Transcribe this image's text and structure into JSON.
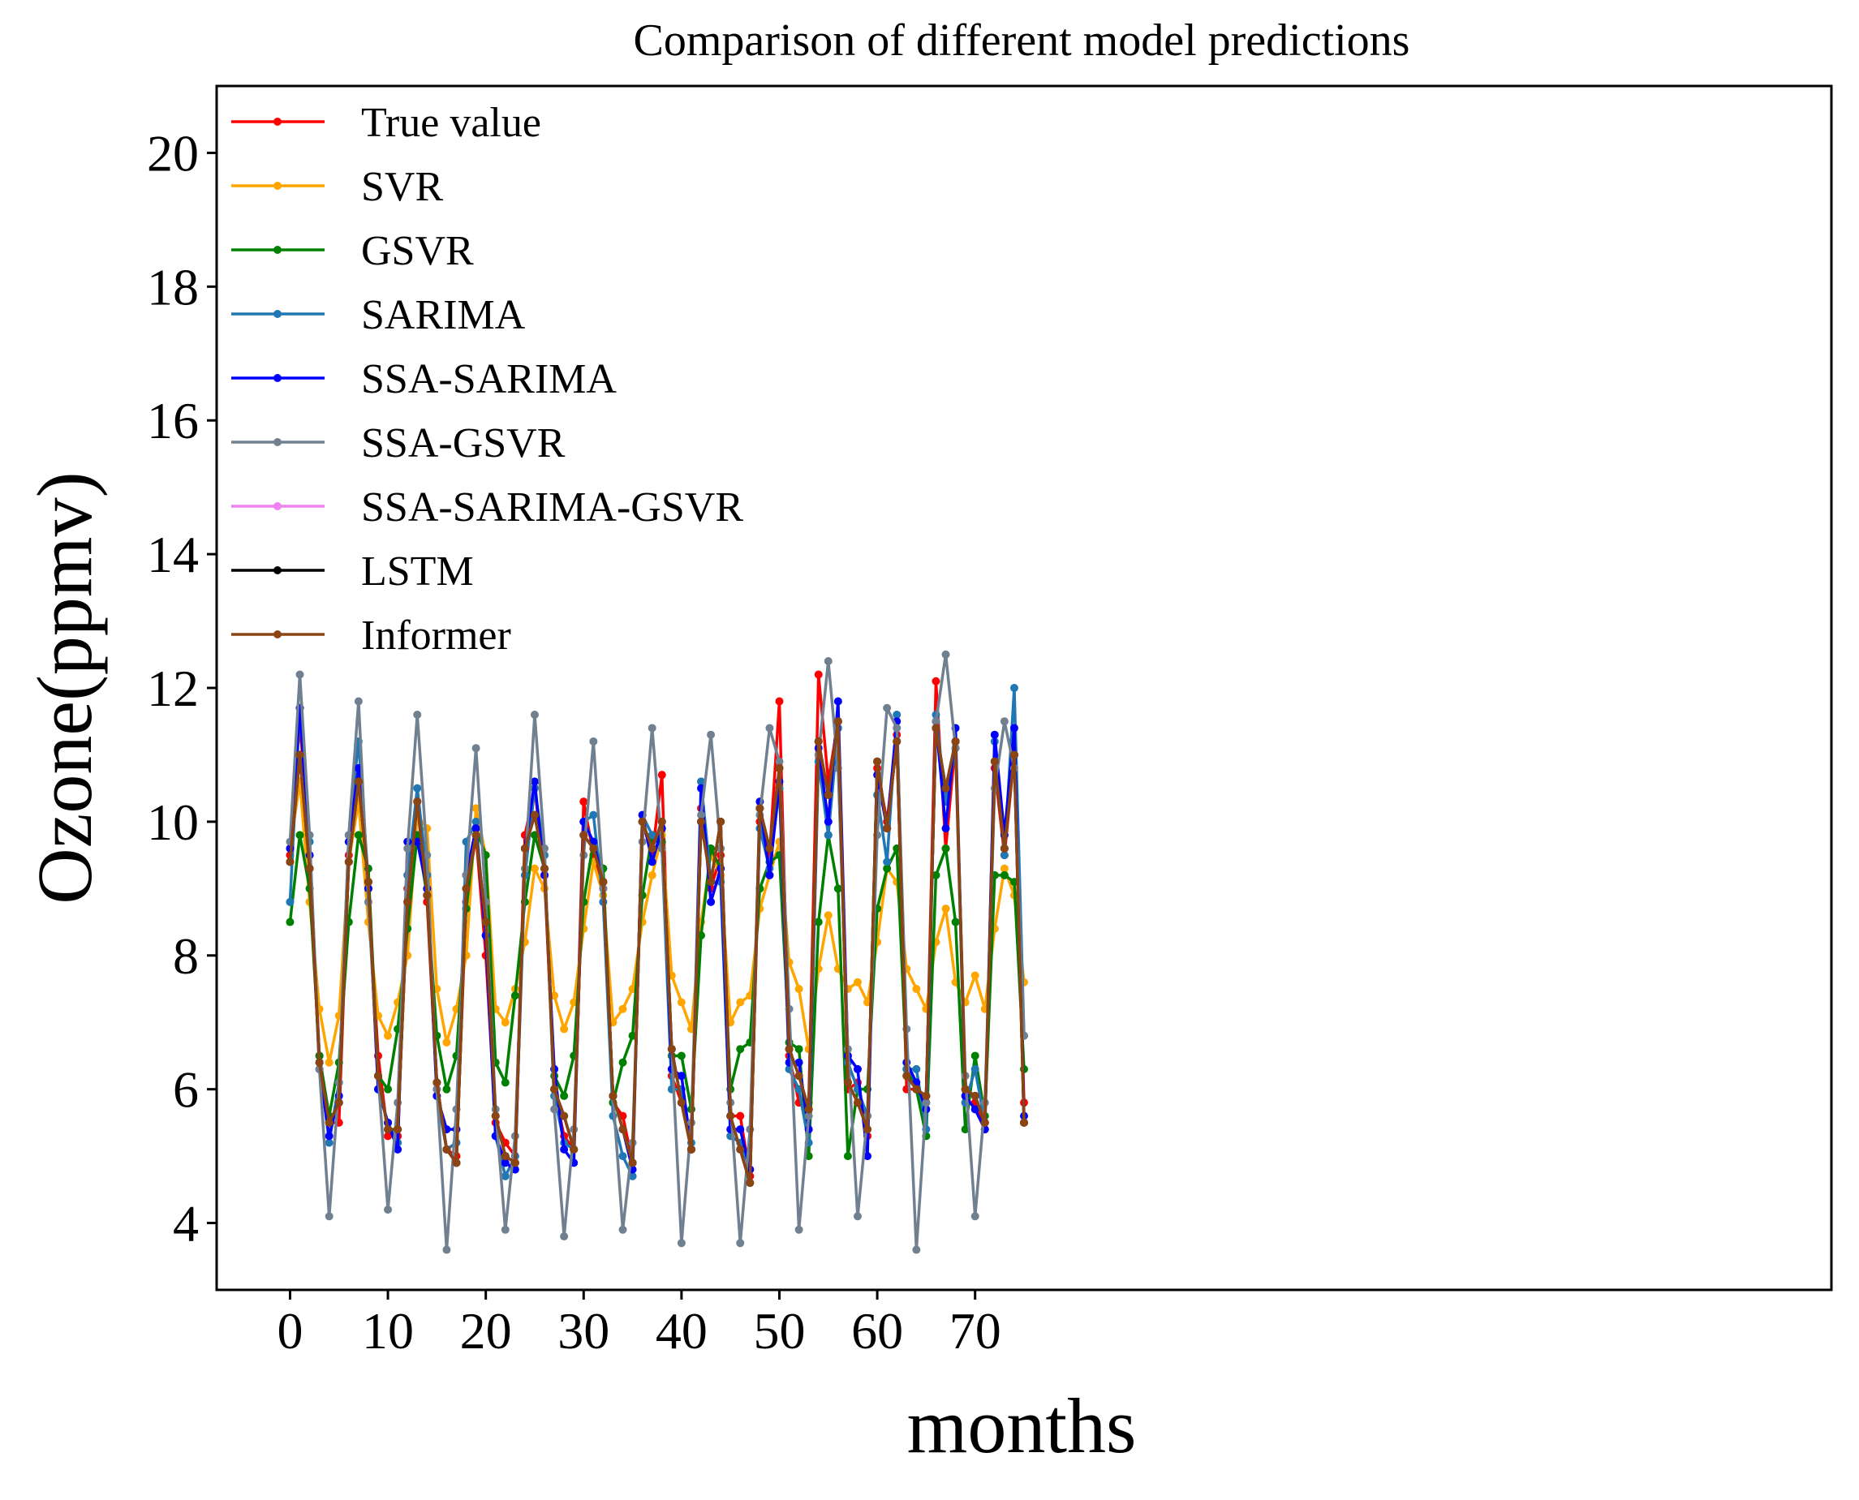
{
  "chart_data": {
    "type": "line",
    "title": "Comparison of different model predictions",
    "xlabel": "months",
    "ylabel": "Ozone(ppmv)",
    "xlim": [
      -7.5,
      157.5
    ],
    "ylim": [
      3,
      21
    ],
    "xticks": [
      0,
      10,
      20,
      30,
      40,
      50,
      60,
      70
    ],
    "yticks": [
      4,
      6,
      8,
      10,
      12,
      14,
      16,
      18,
      20
    ],
    "grid": false,
    "legend_position": "upper-left",
    "x": [
      0,
      1,
      2,
      3,
      4,
      5,
      6,
      7,
      8,
      9,
      10,
      11,
      12,
      13,
      14,
      15,
      16,
      17,
      18,
      19,
      20,
      21,
      22,
      23,
      24,
      25,
      26,
      27,
      28,
      29,
      30,
      31,
      32,
      33,
      34,
      35,
      36,
      37,
      38,
      39,
      40,
      41,
      42,
      43,
      44,
      45,
      46,
      47,
      48,
      49,
      50,
      51,
      52,
      53,
      54,
      55,
      56,
      57,
      58,
      59,
      60,
      61,
      62,
      63,
      64,
      65,
      66,
      67,
      68,
      69,
      70,
      71,
      72,
      73,
      74,
      75
    ],
    "series": [
      {
        "name": "True value",
        "color": "#ff0000",
        "values": [
          9.5,
          11.5,
          9.5,
          6.5,
          5.5,
          5.5,
          9.5,
          10.8,
          9.0,
          6.5,
          5.3,
          5.3,
          9.0,
          10.3,
          8.8,
          6.0,
          5.1,
          5.0,
          8.8,
          9.8,
          8.0,
          5.5,
          5.2,
          5.0,
          9.8,
          10.5,
          9.2,
          6.0,
          5.3,
          5.1,
          10.3,
          9.5,
          9.0,
          5.8,
          5.6,
          4.9,
          10.0,
          9.5,
          10.7,
          6.2,
          5.8,
          5.1,
          10.2,
          9.0,
          9.5,
          5.6,
          5.6,
          4.7,
          10.0,
          9.5,
          11.8,
          6.5,
          5.8,
          5.8,
          12.2,
          10.6,
          11.5,
          6.0,
          6.1,
          5.3,
          10.8,
          10.0,
          11.3,
          6.0,
          6.0,
          5.8,
          12.1,
          9.6,
          11.2,
          5.8,
          5.8,
          5.4,
          10.8,
          9.5,
          11.0,
          5.8
        ]
      },
      {
        "name": "SVR",
        "color": "#ffa500",
        "values": [
          9.6,
          10.6,
          8.8,
          7.2,
          6.4,
          7.1,
          9.4,
          10.3,
          8.5,
          7.1,
          6.8,
          7.3,
          8.0,
          10.1,
          9.9,
          7.5,
          6.7,
          7.2,
          8.0,
          10.2,
          9.5,
          7.2,
          7.0,
          7.5,
          8.2,
          9.3,
          9.0,
          7.4,
          6.9,
          7.3,
          8.4,
          9.4,
          8.9,
          7.0,
          7.2,
          7.5,
          8.5,
          9.2,
          9.8,
          7.7,
          7.3,
          6.9,
          8.5,
          9.5,
          9.2,
          7.0,
          7.3,
          7.4,
          8.7,
          9.2,
          9.7,
          7.9,
          7.5,
          6.6,
          7.8,
          8.6,
          7.8,
          7.5,
          7.6,
          7.3,
          8.2,
          9.3,
          9.1,
          7.8,
          7.5,
          7.2,
          8.2,
          8.7,
          7.6,
          7.3,
          7.7,
          7.2,
          8.4,
          9.3,
          8.9,
          7.6
        ]
      },
      {
        "name": "GSVR",
        "color": "#008000",
        "values": [
          8.5,
          9.8,
          9.0,
          6.5,
          5.6,
          6.4,
          8.5,
          9.8,
          9.3,
          6.2,
          6.0,
          6.9,
          8.4,
          9.8,
          8.9,
          6.8,
          6.0,
          6.5,
          8.7,
          9.9,
          9.5,
          6.4,
          6.1,
          7.4,
          8.8,
          9.8,
          9.3,
          6.2,
          5.9,
          6.5,
          8.8,
          9.7,
          9.3,
          5.8,
          6.4,
          6.8,
          8.9,
          9.8,
          9.7,
          6.5,
          6.5,
          5.7,
          8.3,
          9.6,
          9.3,
          6.0,
          6.6,
          6.7,
          9.0,
          9.4,
          9.5,
          6.7,
          6.6,
          5.0,
          8.5,
          9.8,
          9.0,
          5.0,
          6.0,
          6.0,
          8.7,
          9.3,
          9.6,
          6.3,
          6.0,
          5.3,
          9.2,
          9.6,
          8.5,
          5.4,
          6.5,
          5.6,
          9.2,
          9.2,
          9.1,
          6.3
        ]
      },
      {
        "name": "SARIMA",
        "color": "#1f77b4",
        "values": [
          8.8,
          11.7,
          9.7,
          6.4,
          5.2,
          6.1,
          9.8,
          11.2,
          9.1,
          6.0,
          5.5,
          5.2,
          9.2,
          10.5,
          9.2,
          5.9,
          5.1,
          5.2,
          9.7,
          10.0,
          8.3,
          5.3,
          4.7,
          5.0,
          9.2,
          10.5,
          9.5,
          5.9,
          5.2,
          5.1,
          10.0,
          10.1,
          8.8,
          5.6,
          5.0,
          4.7,
          10.1,
          9.8,
          9.6,
          6.0,
          6.0,
          5.2,
          10.6,
          9.1,
          9.1,
          5.3,
          5.2,
          4.8,
          9.9,
          9.3,
          10.5,
          6.3,
          6.0,
          5.2,
          10.9,
          9.8,
          11.4,
          6.4,
          6.0,
          5.6,
          10.4,
          9.4,
          11.6,
          6.3,
          6.3,
          5.4,
          11.6,
          10.3,
          11.1,
          5.8,
          6.3,
          5.5,
          11.2,
          9.5,
          12.0,
          6.8
        ]
      },
      {
        "name": "SSA-SARIMA",
        "color": "#0000ff",
        "values": [
          9.6,
          11.7,
          9.5,
          6.3,
          5.3,
          5.9,
          9.7,
          10.8,
          9.0,
          6.0,
          5.5,
          5.1,
          9.7,
          9.7,
          9.0,
          5.9,
          5.4,
          5.4,
          9.2,
          9.9,
          8.3,
          5.3,
          4.9,
          4.8,
          9.6,
          10.6,
          9.2,
          6.3,
          5.1,
          4.9,
          10.0,
          9.7,
          9.1,
          5.9,
          5.4,
          4.8,
          10.1,
          9.4,
          9.9,
          6.3,
          6.2,
          5.1,
          10.5,
          8.8,
          9.3,
          5.4,
          5.4,
          4.8,
          10.3,
          9.2,
          10.6,
          6.4,
          6.4,
          5.4,
          11.1,
          10.0,
          11.8,
          6.5,
          6.3,
          5.0,
          10.7,
          9.9,
          11.5,
          6.4,
          6.1,
          5.7,
          11.5,
          9.9,
          11.4,
          5.9,
          5.7,
          5.4,
          11.3,
          9.8,
          11.4,
          5.6
        ]
      },
      {
        "name": "SSA-GSVR",
        "color": "#708090",
        "values": [
          9.7,
          12.2,
          9.8,
          6.3,
          4.1,
          6.1,
          9.8,
          11.8,
          8.8,
          6.2,
          4.2,
          5.8,
          9.6,
          11.6,
          9.5,
          6.0,
          3.6,
          5.7,
          9.2,
          11.1,
          8.8,
          5.7,
          3.9,
          5.3,
          9.3,
          11.6,
          9.6,
          5.7,
          3.8,
          5.4,
          9.5,
          11.2,
          9.0,
          5.9,
          3.9,
          5.2,
          9.7,
          11.4,
          9.6,
          6.6,
          3.7,
          5.5,
          10.1,
          11.3,
          9.6,
          5.8,
          3.7,
          5.4,
          10.1,
          11.4,
          10.9,
          7.2,
          3.9,
          5.6,
          11.0,
          12.4,
          10.8,
          6.6,
          4.1,
          5.6,
          9.8,
          11.7,
          11.4,
          6.9,
          3.6,
          5.8,
          11.5,
          12.5,
          11.1,
          6.2,
          4.1,
          5.8,
          10.5,
          11.5,
          10.8,
          6.8
        ]
      },
      {
        "name": "SSA-SARIMA-GSVR",
        "color": "#ee82ee",
        "values": [
          9.4,
          11.0,
          9.3,
          6.4,
          5.5,
          5.8,
          9.4,
          10.6,
          9.1,
          6.2,
          5.4,
          5.4,
          8.8,
          10.3,
          8.9,
          6.1,
          5.1,
          4.9,
          9.0,
          9.8,
          8.5,
          5.6,
          5.0,
          4.9,
          9.6,
          10.1,
          9.3,
          6.0,
          5.6,
          5.1,
          9.8,
          9.6,
          9.1,
          5.9,
          5.4,
          4.9,
          10.0,
          9.6,
          10.0,
          6.6,
          5.8,
          5.1,
          10.0,
          9.1,
          10.0,
          5.6,
          5.1,
          4.6,
          10.2,
          9.6,
          10.8,
          6.6,
          6.2,
          5.7,
          11.2,
          10.4,
          11.5,
          6.1,
          5.8,
          5.4,
          10.9,
          9.9,
          11.2,
          6.2,
          6.0,
          5.9,
          11.4,
          10.5,
          11.2,
          6.0,
          5.9,
          5.5,
          10.9,
          9.6,
          11.0,
          5.5
        ]
      },
      {
        "name": "LSTM",
        "color": "#000000",
        "values": [
          9.4,
          11.0,
          9.3,
          6.4,
          5.5,
          5.8,
          9.4,
          10.6,
          9.1,
          6.2,
          5.4,
          5.4,
          8.8,
          10.3,
          8.9,
          6.1,
          5.1,
          4.9,
          9.0,
          9.8,
          8.5,
          5.6,
          5.0,
          4.9,
          9.6,
          10.1,
          9.3,
          6.0,
          5.6,
          5.1,
          9.8,
          9.6,
          9.1,
          5.9,
          5.4,
          4.9,
          10.0,
          9.6,
          10.0,
          6.6,
          5.8,
          5.1,
          10.0,
          9.1,
          10.0,
          5.6,
          5.1,
          4.6,
          10.2,
          9.6,
          10.8,
          6.6,
          6.2,
          5.7,
          11.2,
          10.4,
          11.5,
          6.1,
          5.8,
          5.4,
          10.9,
          9.9,
          11.2,
          6.2,
          6.0,
          5.9,
          11.4,
          10.5,
          11.2,
          6.0,
          5.9,
          5.5,
          10.9,
          9.6,
          11.0,
          5.5
        ]
      },
      {
        "name": "Informer",
        "color": "#8b4513",
        "values": [
          9.4,
          11.0,
          9.3,
          6.4,
          5.5,
          5.8,
          9.4,
          10.6,
          9.1,
          6.2,
          5.4,
          5.4,
          8.8,
          10.3,
          8.9,
          6.1,
          5.1,
          4.9,
          9.0,
          9.8,
          8.5,
          5.6,
          5.0,
          4.9,
          9.6,
          10.1,
          9.3,
          6.0,
          5.6,
          5.1,
          9.8,
          9.6,
          9.1,
          5.9,
          5.4,
          4.9,
          10.0,
          9.6,
          10.0,
          6.6,
          5.8,
          5.1,
          10.0,
          9.1,
          10.0,
          5.6,
          5.1,
          4.6,
          10.2,
          9.6,
          10.8,
          6.6,
          6.2,
          5.7,
          11.2,
          10.4,
          11.5,
          6.1,
          5.8,
          5.4,
          10.9,
          9.9,
          11.2,
          6.2,
          6.0,
          5.9,
          11.4,
          10.5,
          11.2,
          6.0,
          5.9,
          5.5,
          10.9,
          9.6,
          11.0,
          5.5
        ]
      }
    ]
  }
}
